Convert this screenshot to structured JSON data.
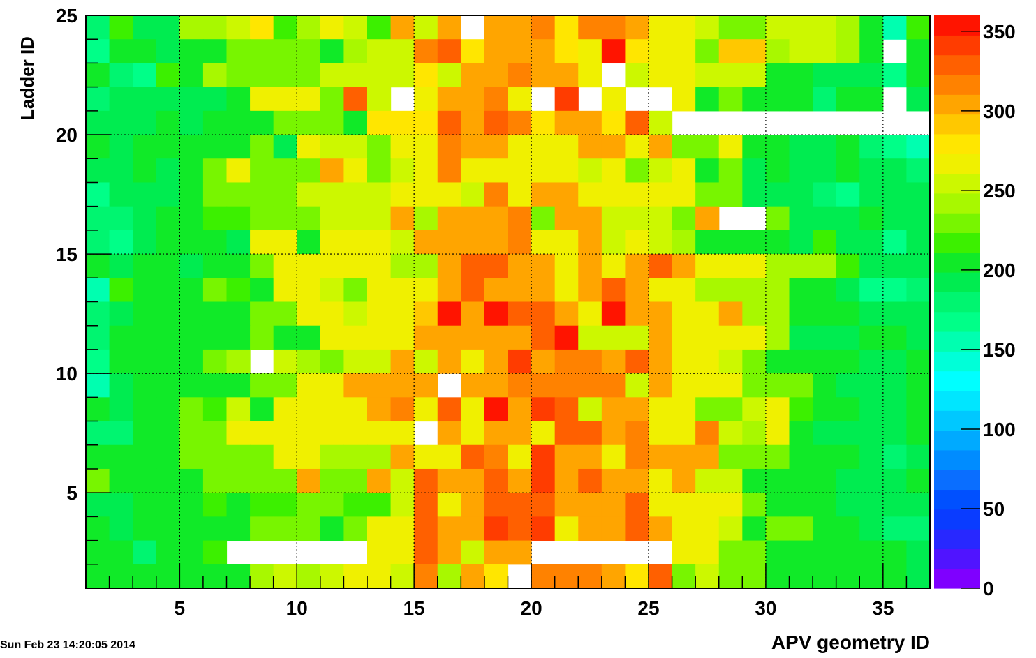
{
  "timestamp": "Sun Feb 23 14:20:05 2014",
  "chart_data": {
    "type": "heatmap",
    "title": "",
    "xlabel": "APV geometry ID",
    "ylabel": "Ladder ID",
    "xlim": [
      1,
      37
    ],
    "ylim": [
      1,
      25
    ],
    "x_ticks": [
      5,
      10,
      15,
      20,
      25,
      30,
      35
    ],
    "y_ticks": [
      5,
      10,
      15,
      20,
      25
    ],
    "grid": true,
    "colorbar": {
      "range": [
        0,
        360
      ],
      "ticks": [
        0,
        50,
        100,
        150,
        200,
        250,
        300,
        350
      ],
      "palette": [
        "#7f00ff",
        "#5014ff",
        "#2828ff",
        "#0a3cff",
        "#0050ff",
        "#0a6eff",
        "#008cff",
        "#00aaff",
        "#00c8ff",
        "#00e6ff",
        "#00ffff",
        "#00ffd8",
        "#00ffb0",
        "#00ff88",
        "#00f570",
        "#00ec50",
        "#10ea28",
        "#3cf000",
        "#78f500",
        "#a8f800",
        "#ccf800",
        "#f0f000",
        "#ffe600",
        "#ffc800",
        "#ffa500",
        "#ff8200",
        "#ff6000",
        "#ff3c00",
        "#ff1400"
      ]
    },
    "missing_value": null,
    "cols": 36,
    "rows": 24,
    "rows_top_to_bottom": [
      [
        185,
        220,
        195,
        195,
        240,
        240,
        260,
        280,
        220,
        240,
        265,
        250,
        220,
        300,
        260,
        305,
        null,
        310,
        300,
        320,
        275,
        320,
        320,
        300,
        270,
        270,
        250,
        230,
        230,
        250,
        260,
        250,
        240,
        200,
        160,
        220
      ],
      [
        170,
        200,
        200,
        195,
        200,
        200,
        225,
        230,
        230,
        230,
        210,
        240,
        260,
        260,
        320,
        330,
        280,
        305,
        305,
        305,
        275,
        270,
        350,
        275,
        270,
        270,
        235,
        290,
        290,
        245,
        260,
        260,
        240,
        200,
        null,
        200
      ],
      [
        200,
        185,
        170,
        220,
        200,
        240,
        230,
        230,
        230,
        230,
        260,
        260,
        260,
        260,
        280,
        260,
        300,
        300,
        320,
        300,
        300,
        270,
        null,
        260,
        270,
        270,
        260,
        260,
        260,
        200,
        200,
        190,
        190,
        190,
        170,
        210
      ],
      [
        180,
        195,
        195,
        195,
        195,
        190,
        210,
        270,
        270,
        270,
        230,
        330,
        260,
        null,
        265,
        300,
        305,
        320,
        270,
        null,
        345,
        null,
        270,
        null,
        null,
        270,
        200,
        230,
        200,
        200,
        200,
        180,
        200,
        200,
        null,
        190
      ],
      [
        195,
        195,
        195,
        200,
        195,
        210,
        200,
        200,
        225,
        230,
        230,
        200,
        275,
        275,
        275,
        325,
        305,
        325,
        320,
        275,
        300,
        300,
        275,
        330,
        260,
        null,
        null,
        null,
        null,
        null,
        null,
        null,
        null,
        null,
        null,
        null
      ],
      [
        200,
        190,
        210,
        200,
        200,
        210,
        210,
        230,
        190,
        270,
        250,
        250,
        235,
        270,
        270,
        320,
        300,
        300,
        270,
        270,
        270,
        300,
        300,
        270,
        300,
        230,
        230,
        270,
        210,
        210,
        195,
        195,
        200,
        180,
        170,
        150
      ],
      [
        195,
        195,
        200,
        195,
        200,
        230,
        270,
        230,
        230,
        230,
        300,
        270,
        230,
        250,
        270,
        320,
        270,
        270,
        270,
        270,
        270,
        260,
        270,
        230,
        260,
        270,
        210,
        230,
        195,
        210,
        195,
        195,
        200,
        190,
        195,
        180
      ],
      [
        170,
        195,
        195,
        195,
        200,
        230,
        230,
        230,
        230,
        260,
        260,
        260,
        260,
        270,
        270,
        270,
        260,
        320,
        270,
        300,
        300,
        270,
        270,
        270,
        270,
        270,
        230,
        230,
        195,
        195,
        195,
        180,
        170,
        195,
        195,
        190
      ],
      [
        180,
        180,
        190,
        200,
        200,
        220,
        220,
        230,
        230,
        230,
        255,
        255,
        260,
        300,
        240,
        300,
        300,
        300,
        320,
        230,
        305,
        300,
        260,
        260,
        250,
        230,
        300,
        null,
        null,
        230,
        195,
        195,
        195,
        200,
        195,
        190
      ],
      [
        180,
        170,
        195,
        210,
        200,
        200,
        195,
        270,
        270,
        200,
        270,
        265,
        270,
        250,
        300,
        300,
        300,
        300,
        320,
        270,
        270,
        300,
        250,
        270,
        250,
        240,
        210,
        210,
        210,
        210,
        195,
        220,
        195,
        195,
        170,
        190
      ],
      [
        200,
        190,
        210,
        210,
        195,
        200,
        200,
        230,
        265,
        270,
        265,
        270,
        270,
        240,
        240,
        300,
        330,
        330,
        300,
        300,
        270,
        300,
        270,
        300,
        330,
        300,
        270,
        270,
        270,
        240,
        240,
        240,
        220,
        195,
        195,
        190
      ],
      [
        160,
        220,
        200,
        200,
        200,
        230,
        220,
        200,
        270,
        270,
        250,
        230,
        270,
        270,
        270,
        300,
        330,
        300,
        300,
        300,
        270,
        305,
        330,
        300,
        270,
        270,
        240,
        240,
        240,
        240,
        200,
        200,
        195,
        170,
        170,
        185
      ],
      [
        180,
        195,
        200,
        200,
        200,
        210,
        210,
        230,
        230,
        270,
        270,
        250,
        270,
        270,
        290,
        350,
        310,
        350,
        330,
        330,
        300,
        270,
        350,
        300,
        300,
        270,
        270,
        300,
        240,
        240,
        200,
        200,
        200,
        195,
        190,
        195
      ],
      [
        180,
        200,
        200,
        200,
        210,
        210,
        200,
        230,
        210,
        200,
        270,
        270,
        270,
        270,
        300,
        300,
        300,
        300,
        300,
        330,
        350,
        260,
        260,
        260,
        300,
        270,
        270,
        270,
        270,
        240,
        195,
        195,
        195,
        200,
        200,
        190
      ],
      [
        170,
        200,
        200,
        210,
        200,
        230,
        240,
        null,
        260,
        240,
        230,
        260,
        260,
        300,
        260,
        300,
        270,
        300,
        340,
        300,
        320,
        320,
        300,
        330,
        300,
        270,
        270,
        250,
        230,
        200,
        200,
        200,
        210,
        195,
        195,
        200
      ],
      [
        160,
        195,
        200,
        210,
        200,
        210,
        210,
        230,
        230,
        270,
        270,
        300,
        300,
        300,
        300,
        null,
        300,
        300,
        320,
        320,
        320,
        320,
        320,
        260,
        300,
        270,
        270,
        270,
        230,
        230,
        230,
        210,
        195,
        195,
        195,
        200
      ],
      [
        200,
        190,
        200,
        200,
        230,
        220,
        260,
        210,
        270,
        270,
        270,
        270,
        300,
        320,
        270,
        330,
        270,
        360,
        300,
        340,
        330,
        250,
        300,
        300,
        270,
        270,
        230,
        230,
        250,
        270,
        220,
        200,
        200,
        195,
        195,
        210
      ],
      [
        180,
        180,
        200,
        210,
        230,
        230,
        270,
        270,
        270,
        270,
        270,
        270,
        270,
        270,
        null,
        300,
        270,
        300,
        300,
        270,
        330,
        330,
        300,
        320,
        270,
        270,
        320,
        250,
        240,
        270,
        210,
        195,
        195,
        195,
        195,
        200
      ],
      [
        210,
        210,
        210,
        200,
        230,
        230,
        230,
        230,
        270,
        270,
        240,
        240,
        240,
        300,
        270,
        270,
        330,
        320,
        270,
        340,
        300,
        300,
        270,
        320,
        300,
        300,
        300,
        230,
        230,
        230,
        200,
        200,
        200,
        190,
        175,
        190
      ],
      [
        230,
        200,
        200,
        210,
        200,
        230,
        230,
        230,
        230,
        300,
        230,
        230,
        300,
        250,
        330,
        300,
        300,
        330,
        300,
        340,
        300,
        330,
        300,
        300,
        270,
        300,
        250,
        250,
        200,
        200,
        200,
        210,
        195,
        190,
        195,
        200
      ],
      [
        195,
        195,
        200,
        200,
        200,
        220,
        200,
        220,
        220,
        230,
        230,
        220,
        220,
        250,
        330,
        270,
        300,
        330,
        330,
        330,
        300,
        300,
        300,
        330,
        270,
        270,
        270,
        270,
        230,
        200,
        200,
        200,
        195,
        195,
        190,
        190
      ],
      [
        200,
        195,
        200,
        200,
        200,
        200,
        200,
        230,
        230,
        230,
        210,
        230,
        270,
        270,
        330,
        300,
        300,
        340,
        330,
        340,
        270,
        300,
        300,
        330,
        300,
        270,
        270,
        250,
        200,
        230,
        230,
        200,
        200,
        190,
        180,
        175
      ],
      [
        200,
        200,
        185,
        200,
        200,
        220,
        null,
        null,
        null,
        null,
        null,
        null,
        270,
        270,
        330,
        300,
        250,
        300,
        300,
        null,
        null,
        null,
        null,
        null,
        null,
        270,
        270,
        230,
        230,
        210,
        200,
        200,
        200,
        200,
        200,
        195
      ],
      [
        200,
        200,
        200,
        200,
        200,
        210,
        210,
        240,
        250,
        240,
        250,
        270,
        270,
        250,
        320,
        240,
        300,
        280,
        null,
        320,
        320,
        320,
        300,
        280,
        330,
        230,
        250,
        230,
        230,
        200,
        200,
        200,
        200,
        200,
        200,
        195
      ]
    ]
  }
}
